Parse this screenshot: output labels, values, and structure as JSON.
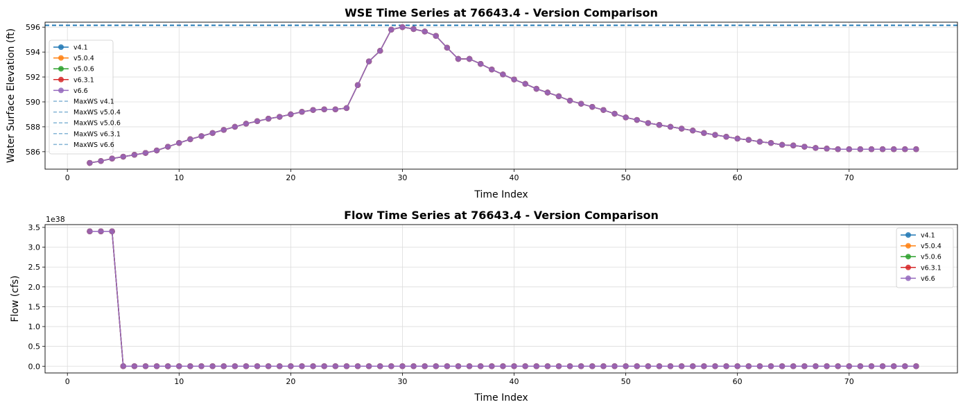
{
  "figure": {
    "colors": {
      "v4.1": "#1f77b4",
      "v5.0.4": "#ff7f0e",
      "v5.0.6": "#2ca02c",
      "v6.3.1": "#d62728",
      "v6.6": "#9467bd",
      "maxws_line": "#1f77b4",
      "grid": "#dcdcdc",
      "legend_border": "#cccccc"
    }
  },
  "chart_data": [
    {
      "type": "line",
      "title": "WSE Time Series at 76643.4 - Version Comparison",
      "xlabel": "Time Index",
      "ylabel": "Water Surface Elevation (ft)",
      "xlim": [
        -2,
        79.7
      ],
      "ylim": [
        584.6,
        596.4
      ],
      "xticks": [
        0,
        10,
        20,
        30,
        40,
        50,
        60,
        70
      ],
      "yticks": [
        586,
        588,
        590,
        592,
        594,
        596
      ],
      "grid": true,
      "legend_position": "upper-left",
      "x": [
        2,
        3,
        4,
        5,
        6,
        7,
        8,
        9,
        10,
        11,
        12,
        13,
        14,
        15,
        16,
        17,
        18,
        19,
        20,
        21,
        22,
        23,
        24,
        25,
        26,
        27,
        28,
        29,
        30,
        31,
        32,
        33,
        34,
        35,
        36,
        37,
        38,
        39,
        40,
        41,
        42,
        43,
        44,
        45,
        46,
        47,
        48,
        49,
        50,
        51,
        52,
        53,
        54,
        55,
        56,
        57,
        58,
        59,
        60,
        61,
        62,
        63,
        64,
        65,
        66,
        67,
        68,
        69,
        70,
        71,
        72,
        73,
        74,
        75,
        76
      ],
      "series": [
        {
          "name": "v4.1",
          "marker": "o",
          "values": [
            585.1,
            585.25,
            585.45,
            585.6,
            585.75,
            585.9,
            586.1,
            586.4,
            586.7,
            587.0,
            587.25,
            587.5,
            587.75,
            588.0,
            588.25,
            588.45,
            588.65,
            588.8,
            589.0,
            589.2,
            589.35,
            589.4,
            589.4,
            589.5,
            591.35,
            593.25,
            594.1,
            595.8,
            596.0,
            595.85,
            595.65,
            595.3,
            594.35,
            593.45,
            593.45,
            593.05,
            592.6,
            592.2,
            591.8,
            591.45,
            591.05,
            590.75,
            590.45,
            590.1,
            589.85,
            589.6,
            589.35,
            589.05,
            588.75,
            588.55,
            588.3,
            588.15,
            588.0,
            587.85,
            587.7,
            587.5,
            587.35,
            587.2,
            587.05,
            586.95,
            586.8,
            586.7,
            586.55,
            586.5,
            586.4,
            586.3,
            586.25,
            586.2,
            586.2,
            586.2,
            586.2,
            586.2,
            586.2,
            586.2,
            586.2
          ]
        },
        {
          "name": "v5.0.4",
          "marker": "o",
          "values": [
            585.1,
            585.25,
            585.45,
            585.6,
            585.75,
            585.9,
            586.1,
            586.4,
            586.7,
            587.0,
            587.25,
            587.5,
            587.75,
            588.0,
            588.25,
            588.45,
            588.65,
            588.8,
            589.0,
            589.2,
            589.35,
            589.4,
            589.4,
            589.5,
            591.35,
            593.25,
            594.1,
            595.8,
            596.0,
            595.85,
            595.65,
            595.3,
            594.35,
            593.45,
            593.45,
            593.05,
            592.6,
            592.2,
            591.8,
            591.45,
            591.05,
            590.75,
            590.45,
            590.1,
            589.85,
            589.6,
            589.35,
            589.05,
            588.75,
            588.55,
            588.3,
            588.15,
            588.0,
            587.85,
            587.7,
            587.5,
            587.35,
            587.2,
            587.05,
            586.95,
            586.8,
            586.7,
            586.55,
            586.5,
            586.4,
            586.3,
            586.25,
            586.2,
            586.2,
            586.2,
            586.2,
            586.2,
            586.2,
            586.2,
            586.2
          ]
        },
        {
          "name": "v5.0.6",
          "marker": "o",
          "values": [
            585.1,
            585.25,
            585.45,
            585.6,
            585.75,
            585.9,
            586.1,
            586.4,
            586.7,
            587.0,
            587.25,
            587.5,
            587.75,
            588.0,
            588.25,
            588.45,
            588.65,
            588.8,
            589.0,
            589.2,
            589.35,
            589.4,
            589.4,
            589.5,
            591.35,
            593.25,
            594.1,
            595.8,
            596.0,
            595.85,
            595.65,
            595.3,
            594.35,
            593.45,
            593.45,
            593.05,
            592.6,
            592.2,
            591.8,
            591.45,
            591.05,
            590.75,
            590.45,
            590.1,
            589.85,
            589.6,
            589.35,
            589.05,
            588.75,
            588.55,
            588.3,
            588.15,
            588.0,
            587.85,
            587.7,
            587.5,
            587.35,
            587.2,
            587.05,
            586.95,
            586.8,
            586.7,
            586.55,
            586.5,
            586.4,
            586.3,
            586.25,
            586.2,
            586.2,
            586.2,
            586.2,
            586.2,
            586.2,
            586.2,
            586.2
          ]
        },
        {
          "name": "v6.3.1",
          "marker": "o",
          "values": [
            585.1,
            585.25,
            585.45,
            585.6,
            585.75,
            585.9,
            586.1,
            586.4,
            586.7,
            587.0,
            587.25,
            587.5,
            587.75,
            588.0,
            588.25,
            588.45,
            588.65,
            588.8,
            589.0,
            589.2,
            589.35,
            589.4,
            589.4,
            589.5,
            591.35,
            593.25,
            594.1,
            595.8,
            596.0,
            595.85,
            595.65,
            595.3,
            594.35,
            593.45,
            593.45,
            593.05,
            592.6,
            592.2,
            591.8,
            591.45,
            591.05,
            590.75,
            590.45,
            590.1,
            589.85,
            589.6,
            589.35,
            589.05,
            588.75,
            588.55,
            588.3,
            588.15,
            588.0,
            587.85,
            587.7,
            587.5,
            587.35,
            587.2,
            587.05,
            586.95,
            586.8,
            586.7,
            586.55,
            586.5,
            586.4,
            586.3,
            586.25,
            586.2,
            586.2,
            586.2,
            586.2,
            586.2,
            586.2,
            586.2,
            586.2
          ]
        },
        {
          "name": "v6.6",
          "marker": "o",
          "values": [
            585.1,
            585.25,
            585.45,
            585.6,
            585.75,
            585.9,
            586.1,
            586.4,
            586.7,
            587.0,
            587.25,
            587.5,
            587.75,
            588.0,
            588.25,
            588.45,
            588.65,
            588.8,
            589.0,
            589.2,
            589.35,
            589.4,
            589.4,
            589.5,
            591.35,
            593.25,
            594.1,
            595.8,
            596.0,
            595.85,
            595.65,
            595.3,
            594.35,
            593.45,
            593.45,
            593.05,
            592.6,
            592.2,
            591.8,
            591.45,
            591.05,
            590.75,
            590.45,
            590.1,
            589.85,
            589.6,
            589.35,
            589.05,
            588.75,
            588.55,
            588.3,
            588.15,
            588.0,
            587.85,
            587.7,
            587.5,
            587.35,
            587.2,
            587.05,
            586.95,
            586.8,
            586.7,
            586.55,
            586.5,
            586.4,
            586.3,
            586.25,
            586.2,
            586.2,
            586.2,
            586.2,
            586.2,
            586.2,
            586.2,
            586.2
          ]
        }
      ],
      "hlines": [
        {
          "name": "MaxWS v4.1",
          "y": 596.15,
          "style": "dashed"
        },
        {
          "name": "MaxWS v5.0.4",
          "y": 596.15,
          "style": "dashed"
        },
        {
          "name": "MaxWS v5.0.6",
          "y": 596.15,
          "style": "dashed"
        },
        {
          "name": "MaxWS v6.3.1",
          "y": 596.15,
          "style": "dashed"
        },
        {
          "name": "MaxWS v6.6",
          "y": 596.15,
          "style": "dashed"
        }
      ]
    },
    {
      "type": "line",
      "title": "Flow Time Series at 76643.4 - Version Comparison",
      "xlabel": "Time Index",
      "ylabel": "Flow (cfs)",
      "y_offset_label": "1e38",
      "xlim": [
        -2,
        79.7
      ],
      "ylim": [
        -0.17,
        3.57
      ],
      "xticks": [
        0,
        10,
        20,
        30,
        40,
        50,
        60,
        70
      ],
      "yticks": [
        0.0,
        0.5,
        1.0,
        1.5,
        2.0,
        2.5,
        3.0,
        3.5
      ],
      "ytick_labels": [
        "0.0",
        "0.5",
        "1.0",
        "1.5",
        "2.0",
        "2.5",
        "3.0",
        "3.5"
      ],
      "grid": true,
      "legend_position": "upper-right",
      "x": [
        2,
        3,
        4,
        5,
        6,
        7,
        8,
        9,
        10,
        11,
        12,
        13,
        14,
        15,
        16,
        17,
        18,
        19,
        20,
        21,
        22,
        23,
        24,
        25,
        26,
        27,
        28,
        29,
        30,
        31,
        32,
        33,
        34,
        35,
        36,
        37,
        38,
        39,
        40,
        41,
        42,
        43,
        44,
        45,
        46,
        47,
        48,
        49,
        50,
        51,
        52,
        53,
        54,
        55,
        56,
        57,
        58,
        59,
        60,
        61,
        62,
        63,
        64,
        65,
        66,
        67,
        68,
        69,
        70,
        71,
        72,
        73,
        74,
        75,
        76
      ],
      "series": [
        {
          "name": "v4.1",
          "marker": "o",
          "values": [
            3.4,
            3.4,
            3.4,
            0,
            0,
            0,
            0,
            0,
            0,
            0,
            0,
            0,
            0,
            0,
            0,
            0,
            0,
            0,
            0,
            0,
            0,
            0,
            0,
            0,
            0,
            0,
            0,
            0,
            0,
            0,
            0,
            0,
            0,
            0,
            0,
            0,
            0,
            0,
            0,
            0,
            0,
            0,
            0,
            0,
            0,
            0,
            0,
            0,
            0,
            0,
            0,
            0,
            0,
            0,
            0,
            0,
            0,
            0,
            0,
            0,
            0,
            0,
            0,
            0,
            0,
            0,
            0,
            0,
            0,
            0,
            0,
            0,
            0,
            0,
            0
          ]
        },
        {
          "name": "v5.0.4",
          "marker": "o",
          "values": [
            3.4,
            3.4,
            3.4,
            0,
            0,
            0,
            0,
            0,
            0,
            0,
            0,
            0,
            0,
            0,
            0,
            0,
            0,
            0,
            0,
            0,
            0,
            0,
            0,
            0,
            0,
            0,
            0,
            0,
            0,
            0,
            0,
            0,
            0,
            0,
            0,
            0,
            0,
            0,
            0,
            0,
            0,
            0,
            0,
            0,
            0,
            0,
            0,
            0,
            0,
            0,
            0,
            0,
            0,
            0,
            0,
            0,
            0,
            0,
            0,
            0,
            0,
            0,
            0,
            0,
            0,
            0,
            0,
            0,
            0,
            0,
            0,
            0,
            0,
            0,
            0
          ]
        },
        {
          "name": "v5.0.6",
          "marker": "o",
          "values": [
            3.4,
            3.4,
            3.4,
            0,
            0,
            0,
            0,
            0,
            0,
            0,
            0,
            0,
            0,
            0,
            0,
            0,
            0,
            0,
            0,
            0,
            0,
            0,
            0,
            0,
            0,
            0,
            0,
            0,
            0,
            0,
            0,
            0,
            0,
            0,
            0,
            0,
            0,
            0,
            0,
            0,
            0,
            0,
            0,
            0,
            0,
            0,
            0,
            0,
            0,
            0,
            0,
            0,
            0,
            0,
            0,
            0,
            0,
            0,
            0,
            0,
            0,
            0,
            0,
            0,
            0,
            0,
            0,
            0,
            0,
            0,
            0,
            0,
            0,
            0,
            0
          ]
        },
        {
          "name": "v6.3.1",
          "marker": "o",
          "values": [
            3.4,
            3.4,
            3.4,
            0,
            0,
            0,
            0,
            0,
            0,
            0,
            0,
            0,
            0,
            0,
            0,
            0,
            0,
            0,
            0,
            0,
            0,
            0,
            0,
            0,
            0,
            0,
            0,
            0,
            0,
            0,
            0,
            0,
            0,
            0,
            0,
            0,
            0,
            0,
            0,
            0,
            0,
            0,
            0,
            0,
            0,
            0,
            0,
            0,
            0,
            0,
            0,
            0,
            0,
            0,
            0,
            0,
            0,
            0,
            0,
            0,
            0,
            0,
            0,
            0,
            0,
            0,
            0,
            0,
            0,
            0,
            0,
            0,
            0,
            0,
            0
          ]
        },
        {
          "name": "v6.6",
          "marker": "o",
          "values": [
            3.4,
            3.4,
            3.4,
            0,
            0,
            0,
            0,
            0,
            0,
            0,
            0,
            0,
            0,
            0,
            0,
            0,
            0,
            0,
            0,
            0,
            0,
            0,
            0,
            0,
            0,
            0,
            0,
            0,
            0,
            0,
            0,
            0,
            0,
            0,
            0,
            0,
            0,
            0,
            0,
            0,
            0,
            0,
            0,
            0,
            0,
            0,
            0,
            0,
            0,
            0,
            0,
            0,
            0,
            0,
            0,
            0,
            0,
            0,
            0,
            0,
            0,
            0,
            0,
            0,
            0,
            0,
            0,
            0,
            0,
            0,
            0,
            0,
            0,
            0,
            0
          ]
        }
      ]
    }
  ]
}
